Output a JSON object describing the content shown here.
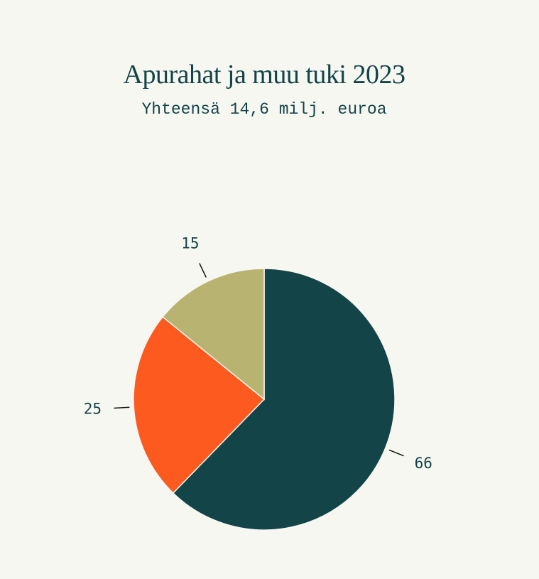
{
  "chart_data": {
    "type": "pie",
    "title": "Apurahat ja muu tuki 2023",
    "subtitle": "Yhteensä 14,6 milj. euroa",
    "values": [
      66,
      25,
      15
    ],
    "colors": [
      "#134447",
      "#fc5a1e",
      "#b8b370"
    ]
  }
}
